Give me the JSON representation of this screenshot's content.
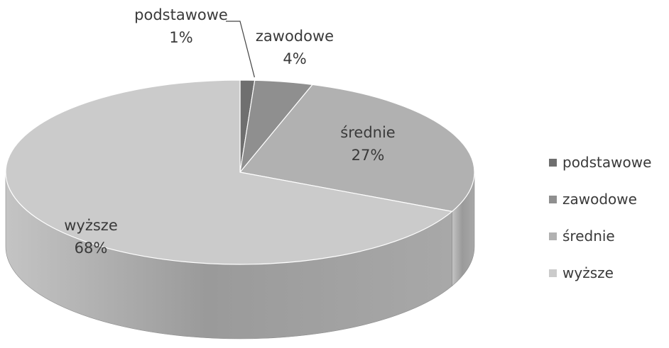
{
  "chart_data": {
    "type": "pie",
    "title": "",
    "categories": [
      "podstawowe",
      "zawodowe",
      "średnie",
      "wyższe"
    ],
    "values": [
      1,
      4,
      27,
      68
    ],
    "value_labels": [
      "1%",
      "4%",
      "27%",
      "68%"
    ],
    "colors": [
      "#6f6f6f",
      "#8f8f8f",
      "#b1b1b1",
      "#cbcbcb"
    ],
    "style": "3d-pie",
    "legend_position": "right"
  }
}
